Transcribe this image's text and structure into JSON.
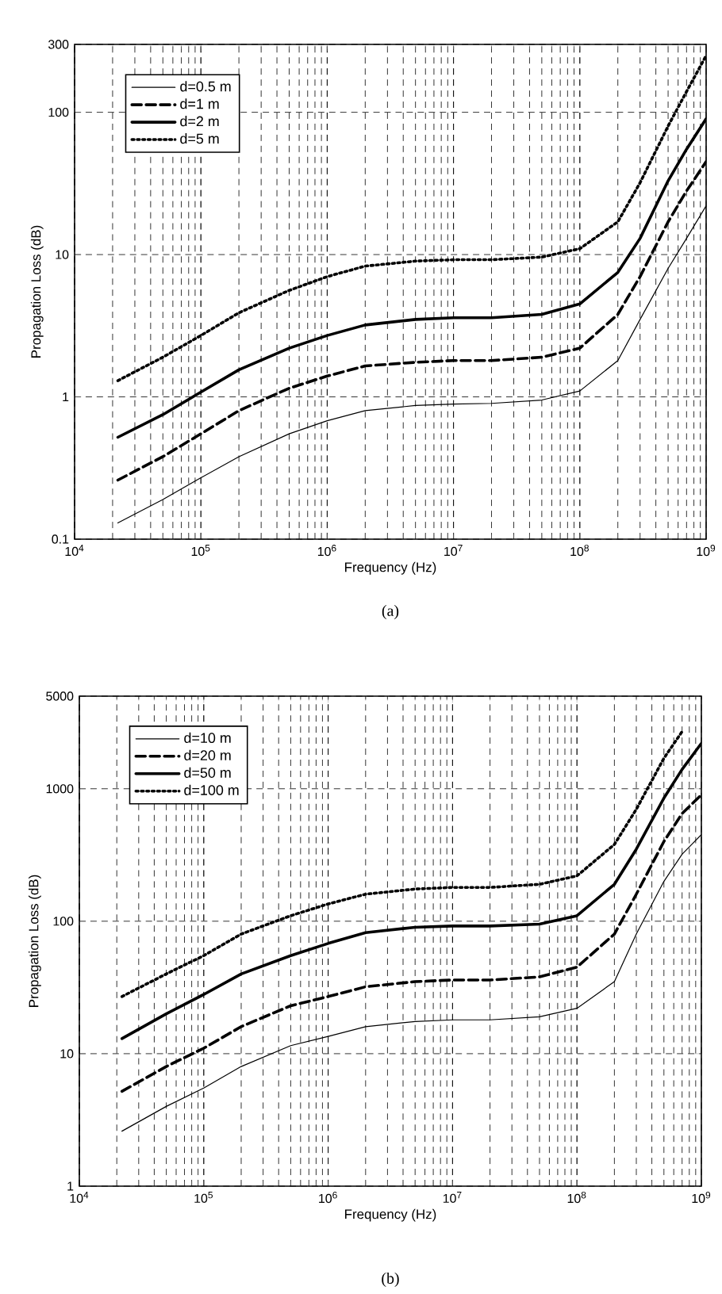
{
  "chart_data": [
    {
      "type": "line",
      "xlabel": "Frequency (Hz)",
      "ylabel": "Propagation Loss (dB)",
      "annotations": [
        "(a)"
      ],
      "log": "xy",
      "grid": true,
      "legend": "top left",
      "x": [
        22000,
        50000,
        100000,
        200000,
        500000,
        1000000,
        2000000,
        5000000,
        10000000,
        20000000,
        50000000,
        100000000,
        200000000,
        300000000,
        500000000,
        700000000,
        1000000000
      ],
      "xlim": [
        10000,
        1000000000
      ],
      "ylim": [
        0.1,
        300
      ],
      "xticks": [
        {
          "value": 10000,
          "label": "10$^{4}$"
        },
        {
          "value": 100000,
          "label": "10$^{5}$"
        },
        {
          "value": 1000000,
          "label": "10$^{6}$"
        },
        {
          "value": 10000000,
          "label": "10$^{7}$"
        },
        {
          "value": 100000000,
          "label": "10$^{8}$"
        },
        {
          "value": 1000000000,
          "label": "10$^{9}$"
        }
      ],
      "yticks": [
        0.1,
        1,
        10,
        100,
        300
      ],
      "series": [
        {
          "name": "d=0.5 m",
          "color": "#000000",
          "line_style": "solid",
          "values": [
            0.13,
            0.19,
            0.27,
            0.38,
            0.55,
            0.68,
            0.8,
            0.87,
            0.89,
            0.9,
            0.95,
            1.1,
            1.8,
            3.5,
            8,
            13,
            22
          ]
        },
        {
          "name": "d=1 m",
          "color": "#000000",
          "line_style": "dashed",
          "values": [
            0.26,
            0.38,
            0.55,
            0.8,
            1.15,
            1.4,
            1.65,
            1.75,
            1.8,
            1.8,
            1.9,
            2.2,
            3.8,
            7,
            17,
            28,
            45
          ]
        },
        {
          "name": "d=2 m",
          "color": "#000000",
          "line_style": "solid",
          "values": [
            0.52,
            0.75,
            1.08,
            1.55,
            2.2,
            2.7,
            3.2,
            3.5,
            3.6,
            3.6,
            3.8,
            4.5,
            7.5,
            13,
            33,
            55,
            90
          ]
        },
        {
          "name": "d=5 m",
          "color": "#000000",
          "line_style": "dotted",
          "values": [
            1.3,
            1.9,
            2.7,
            3.9,
            5.6,
            7,
            8.3,
            9,
            9.2,
            9.2,
            9.6,
            11,
            17,
            32,
            80,
            140,
            250
          ]
        }
      ]
    },
    {
      "type": "line",
      "xlabel": "Frequency (Hz)",
      "ylabel": "Propagation Loss (dB)",
      "annotations": [
        "(b)"
      ],
      "log": "xy",
      "grid": true,
      "legend": "top left",
      "x": [
        22000,
        50000,
        100000,
        200000,
        500000,
        1000000,
        2000000,
        5000000,
        10000000,
        20000000,
        50000000,
        100000000,
        200000000,
        300000000,
        500000000,
        700000000,
        1000000000
      ],
      "xlim": [
        10000,
        1000000000
      ],
      "ylim": [
        1,
        5000
      ],
      "xticks": [
        {
          "value": 10000,
          "label": "10$^{4}$"
        },
        {
          "value": 100000,
          "label": "10$^{5}$"
        },
        {
          "value": 1000000,
          "label": "10$^{6}$"
        },
        {
          "value": 10000000,
          "label": "10$^{7}$"
        },
        {
          "value": 100000000,
          "label": "10$^{8}$"
        },
        {
          "value": 1000000000,
          "label": "10$^{9}$"
        }
      ],
      "yticks": [
        1,
        10,
        100,
        1000,
        5000
      ],
      "series": [
        {
          "name": "d=10 m",
          "color": "#000000",
          "line_style": "solid",
          "values": [
            2.6,
            4,
            5.5,
            8,
            11.5,
            13.5,
            16,
            17.5,
            18,
            18,
            19,
            22,
            35,
            80,
            200,
            320,
            450
          ]
        },
        {
          "name": "d=20 m",
          "color": "#000000",
          "line_style": "dashed",
          "values": [
            5.2,
            8,
            11,
            16,
            23,
            27,
            32,
            35,
            36,
            36,
            38,
            45,
            80,
            160,
            400,
            650,
            900
          ]
        },
        {
          "name": "d=50 m",
          "color": "#000000",
          "line_style": "solid",
          "values": [
            13,
            20,
            28,
            40,
            55,
            68,
            82,
            90,
            92,
            92,
            95,
            110,
            190,
            350,
            850,
            1400,
            2200
          ]
        },
        {
          "name": "d=100 m",
          "color": "#000000",
          "line_style": "dotted",
          "values": [
            27,
            40,
            55,
            80,
            110,
            135,
            160,
            175,
            180,
            180,
            190,
            220,
            380,
            700,
            1700,
            2700,
            null
          ]
        }
      ]
    }
  ]
}
